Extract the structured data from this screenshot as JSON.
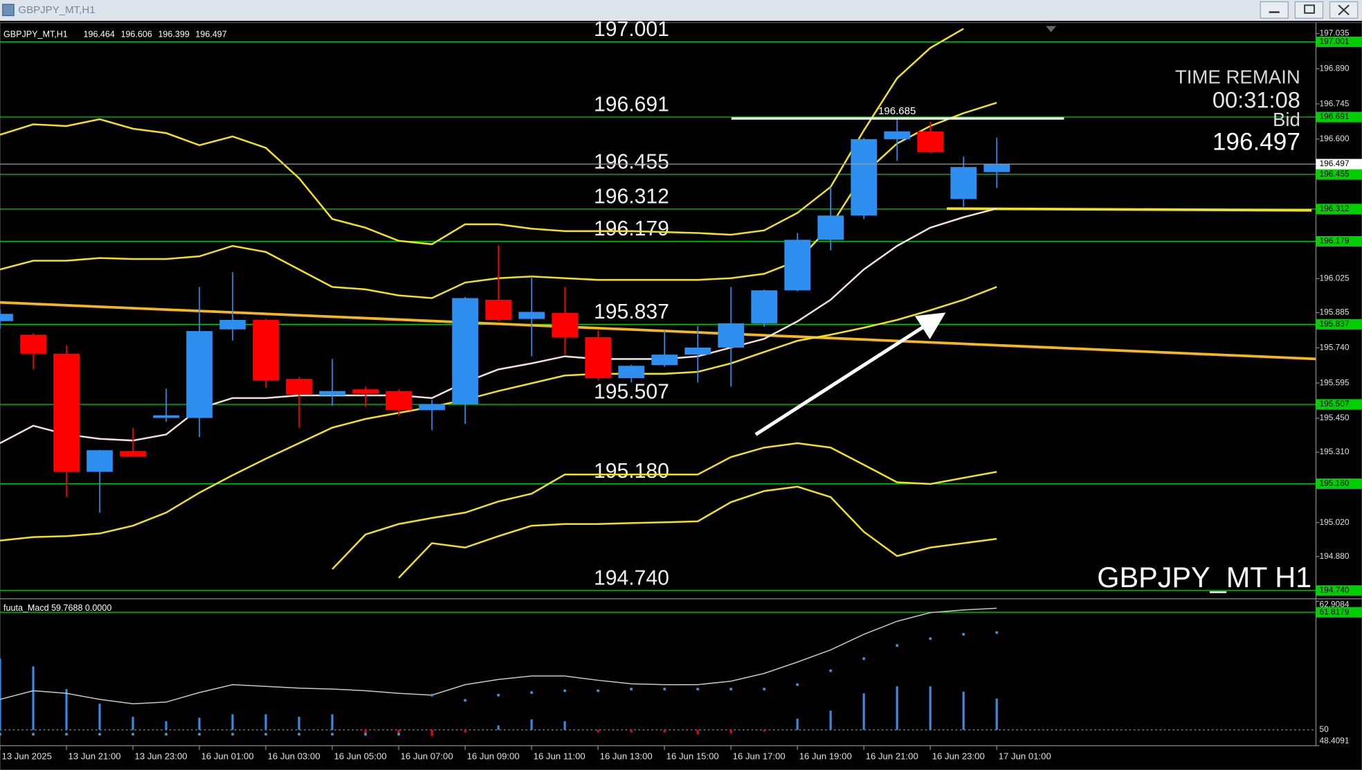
{
  "window": {
    "title": "GBPJPY_MT,H1"
  },
  "chart_data": [
    {
      "type": "candlestick",
      "symbol_label": "GBPJPY_MT,H1",
      "watermark": "GBPJPY_MT H1",
      "info": {
        "label": "TIME REMAIN",
        "time": "00:31:08",
        "bid_label": "Bid"
      },
      "categories": [
        "13 Jun 2025",
        null,
        "13 Jun 21:00",
        null,
        "13 Jun 23:00",
        null,
        "16 Jun 01:00",
        null,
        "16 Jun 03:00",
        null,
        "16 Jun 05:00",
        null,
        "16 Jun 07:00",
        null,
        "16 Jun 09:00",
        null,
        "16 Jun 11:00",
        null,
        "16 Jun 13:00",
        null,
        "16 Jun 15:00",
        null,
        "16 Jun 17:00",
        null,
        "16 Jun 19:00",
        null,
        "16 Jun 21:00",
        null,
        "16 Jun 23:00",
        null,
        "17 Jun 01:00"
      ],
      "open": [
        195.85,
        195.794,
        195.716,
        195.229,
        195.315,
        195.451,
        195.451,
        195.816,
        195.855,
        195.612,
        195.544,
        195.569,
        195.562,
        195.483,
        195.508,
        195.938,
        195.859,
        195.884,
        195.784,
        195.615,
        195.669,
        195.712,
        195.741,
        195.841,
        195.977,
        196.185,
        196.285,
        196.6,
        196.632,
        196.353,
        196.464
      ],
      "high": [
        195.9,
        195.8,
        195.751,
        195.32,
        195.411,
        195.572,
        195.991,
        196.052,
        195.86,
        195.62,
        195.694,
        195.58,
        195.569,
        195.526,
        195.95,
        196.163,
        196.034,
        195.991,
        195.812,
        195.67,
        195.812,
        195.83,
        195.991,
        195.98,
        196.213,
        196.403,
        196.605,
        196.685,
        196.672,
        196.528,
        196.606
      ],
      "low": [
        195.82,
        195.651,
        195.125,
        195.06,
        195.29,
        195.436,
        195.372,
        195.77,
        195.576,
        195.411,
        195.501,
        195.497,
        195.461,
        195.401,
        195.426,
        195.848,
        195.705,
        195.712,
        195.608,
        195.597,
        195.662,
        195.597,
        195.58,
        195.826,
        195.973,
        196.142,
        196.271,
        196.51,
        196.543,
        196.321,
        196.399
      ],
      "close": [
        195.88,
        195.716,
        195.229,
        195.318,
        195.293,
        195.462,
        195.809,
        195.855,
        195.605,
        195.547,
        195.562,
        195.551,
        195.483,
        195.508,
        195.945,
        195.855,
        195.888,
        195.784,
        195.615,
        195.666,
        195.712,
        195.741,
        195.841,
        195.977,
        196.185,
        196.285,
        196.6,
        196.632,
        196.546,
        196.485,
        196.497
      ],
      "up_color": "#2e8ff0",
      "down_color": "#ff0000",
      "series": [
        {
          "color": "#f2e21c",
          "values": [
            196.618,
            196.661,
            196.654,
            196.682,
            196.643,
            196.625,
            196.575,
            196.611,
            196.564,
            196.439,
            196.271,
            196.235,
            196.181,
            196.167,
            196.249,
            196.249,
            196.231,
            196.221,
            196.221,
            196.221,
            196.217,
            196.213,
            196.206,
            196.224,
            196.296,
            196.403,
            196.636,
            196.851,
            196.976,
            197.055,
            null
          ]
        },
        {
          "color": "#f2e21c",
          "values": [
            196.063,
            196.099,
            196.099,
            196.11,
            196.106,
            196.106,
            196.117,
            196.16,
            196.135,
            196.063,
            195.991,
            195.981,
            195.956,
            195.945,
            196.009,
            196.027,
            196.034,
            196.027,
            196.02,
            196.02,
            196.02,
            196.02,
            196.027,
            196.045,
            196.099,
            196.242,
            196.457,
            196.582,
            196.654,
            196.707,
            196.75
          ]
        },
        {
          "color": "#f3dede",
          "values": [
            195.347,
            195.419,
            195.383,
            195.365,
            195.358,
            195.383,
            195.49,
            195.533,
            195.533,
            195.544,
            195.544,
            195.544,
            195.544,
            195.533,
            195.598,
            195.651,
            195.676,
            195.705,
            195.694,
            195.694,
            195.694,
            195.705,
            195.741,
            195.777,
            195.849,
            195.938,
            196.063,
            196.16,
            196.235,
            196.278,
            196.314
          ]
        },
        {
          "color": "#f2e21c",
          "values": [
            194.946,
            194.96,
            194.964,
            194.975,
            195.007,
            195.061,
            195.143,
            195.215,
            195.283,
            195.347,
            195.411,
            195.447,
            195.472,
            195.497,
            195.526,
            195.562,
            195.594,
            195.626,
            195.633,
            195.633,
            195.633,
            195.641,
            195.676,
            195.723,
            195.769,
            195.794,
            195.823,
            195.855,
            195.895,
            195.938,
            195.991
          ]
        },
        {
          "color": "#f2e21c",
          "values": [
            null,
            null,
            null,
            null,
            null,
            null,
            null,
            null,
            null,
            null,
            194.828,
            194.971,
            195.014,
            195.039,
            195.061,
            195.107,
            195.139,
            195.218,
            195.218,
            195.218,
            195.218,
            195.218,
            195.29,
            195.329,
            195.347,
            195.329,
            195.258,
            195.186,
            195.179,
            195.204,
            195.229
          ]
        },
        {
          "color": "#f2e21c",
          "values": [
            null,
            null,
            null,
            null,
            null,
            null,
            null,
            null,
            null,
            null,
            null,
            null,
            194.792,
            194.935,
            194.917,
            194.964,
            195.007,
            195.014,
            195.014,
            195.018,
            195.021,
            195.025,
            195.104,
            195.15,
            195.168,
            195.125,
            194.982,
            194.882,
            194.917,
            194.935,
            194.953
          ]
        }
      ],
      "levels": [
        197.001,
        196.691,
        196.455,
        196.312,
        196.179,
        195.837,
        195.507,
        {
          "value": 195.18,
          "label": "195.180"
        },
        {
          "value": 194.74,
          "label": "194.740"
        }
      ],
      "level_color": "#00d000",
      "marked_high": 196.685,
      "ylim": [
        194.713,
        197.073
      ],
      "yticks": [
        197.035,
        {
          "value": 196.89,
          "label": "196.890"
        },
        196.745,
        {
          "value": 196.6,
          "label": "196.600"
        },
        196.025,
        195.885,
        {
          "value": 195.74,
          "label": "195.740"
        },
        195.595,
        {
          "value": 195.45,
          "label": "195.450"
        },
        {
          "value": 195.31,
          "label": "195.310"
        },
        {
          "value": 195.02,
          "label": "195.020"
        },
        {
          "value": 194.88,
          "label": "194.880"
        }
      ]
    },
    {
      "type": "macd",
      "label": "fuuta_Macd 59.7688  0.0000",
      "histogram": [
        57.16,
        56.37,
        54.1,
        52.62,
        51.31,
        50.87,
        51.22,
        51.57,
        51.57,
        51.31,
        51.57,
        49.56,
        49.56,
        49.39,
        49.74,
        50.44,
        51.05,
        50.87,
        49.74,
        49.74,
        49.74,
        49.56,
        49.65,
        49.83,
        51.13,
        51.92,
        53.67,
        54.37,
        54.37,
        53.84,
        53.14
      ],
      "line": [
        53.06,
        53.93,
        53.67,
        53.06,
        52.62,
        52.79,
        53.75,
        54.54,
        54.37,
        54.19,
        54.1,
        53.93,
        53.67,
        53.49,
        54.54,
        55.06,
        55.41,
        55.41,
        54.98,
        54.63,
        54.54,
        54.54,
        54.89,
        55.67,
        56.81,
        58.03,
        59.6,
        60.91,
        61.78,
        62.05,
        62.22
      ],
      "signal": [
        49.56,
        49.56,
        49.56,
        49.56,
        49.56,
        49.56,
        49.56,
        49.56,
        49.56,
        49.56,
        49.56,
        49.56,
        49.56,
        53.49,
        52.97,
        53.49,
        53.75,
        53.93,
        53.93,
        54.1,
        54.1,
        54.1,
        54.1,
        54.1,
        54.54,
        55.94,
        57.16,
        58.47,
        59.17,
        59.6,
        59.78
      ],
      "up_color": "#2e8ff0",
      "down_color": "#ff0000",
      "line_color": "#c8c8c8",
      "signal_color": "#2e9be0",
      "baseline": 50,
      "levels": [
        61.8179
      ],
      "ylim": [
        48.4091,
        62.9084
      ],
      "yticks": [
        62.9084,
        48.4091
      ]
    }
  ]
}
